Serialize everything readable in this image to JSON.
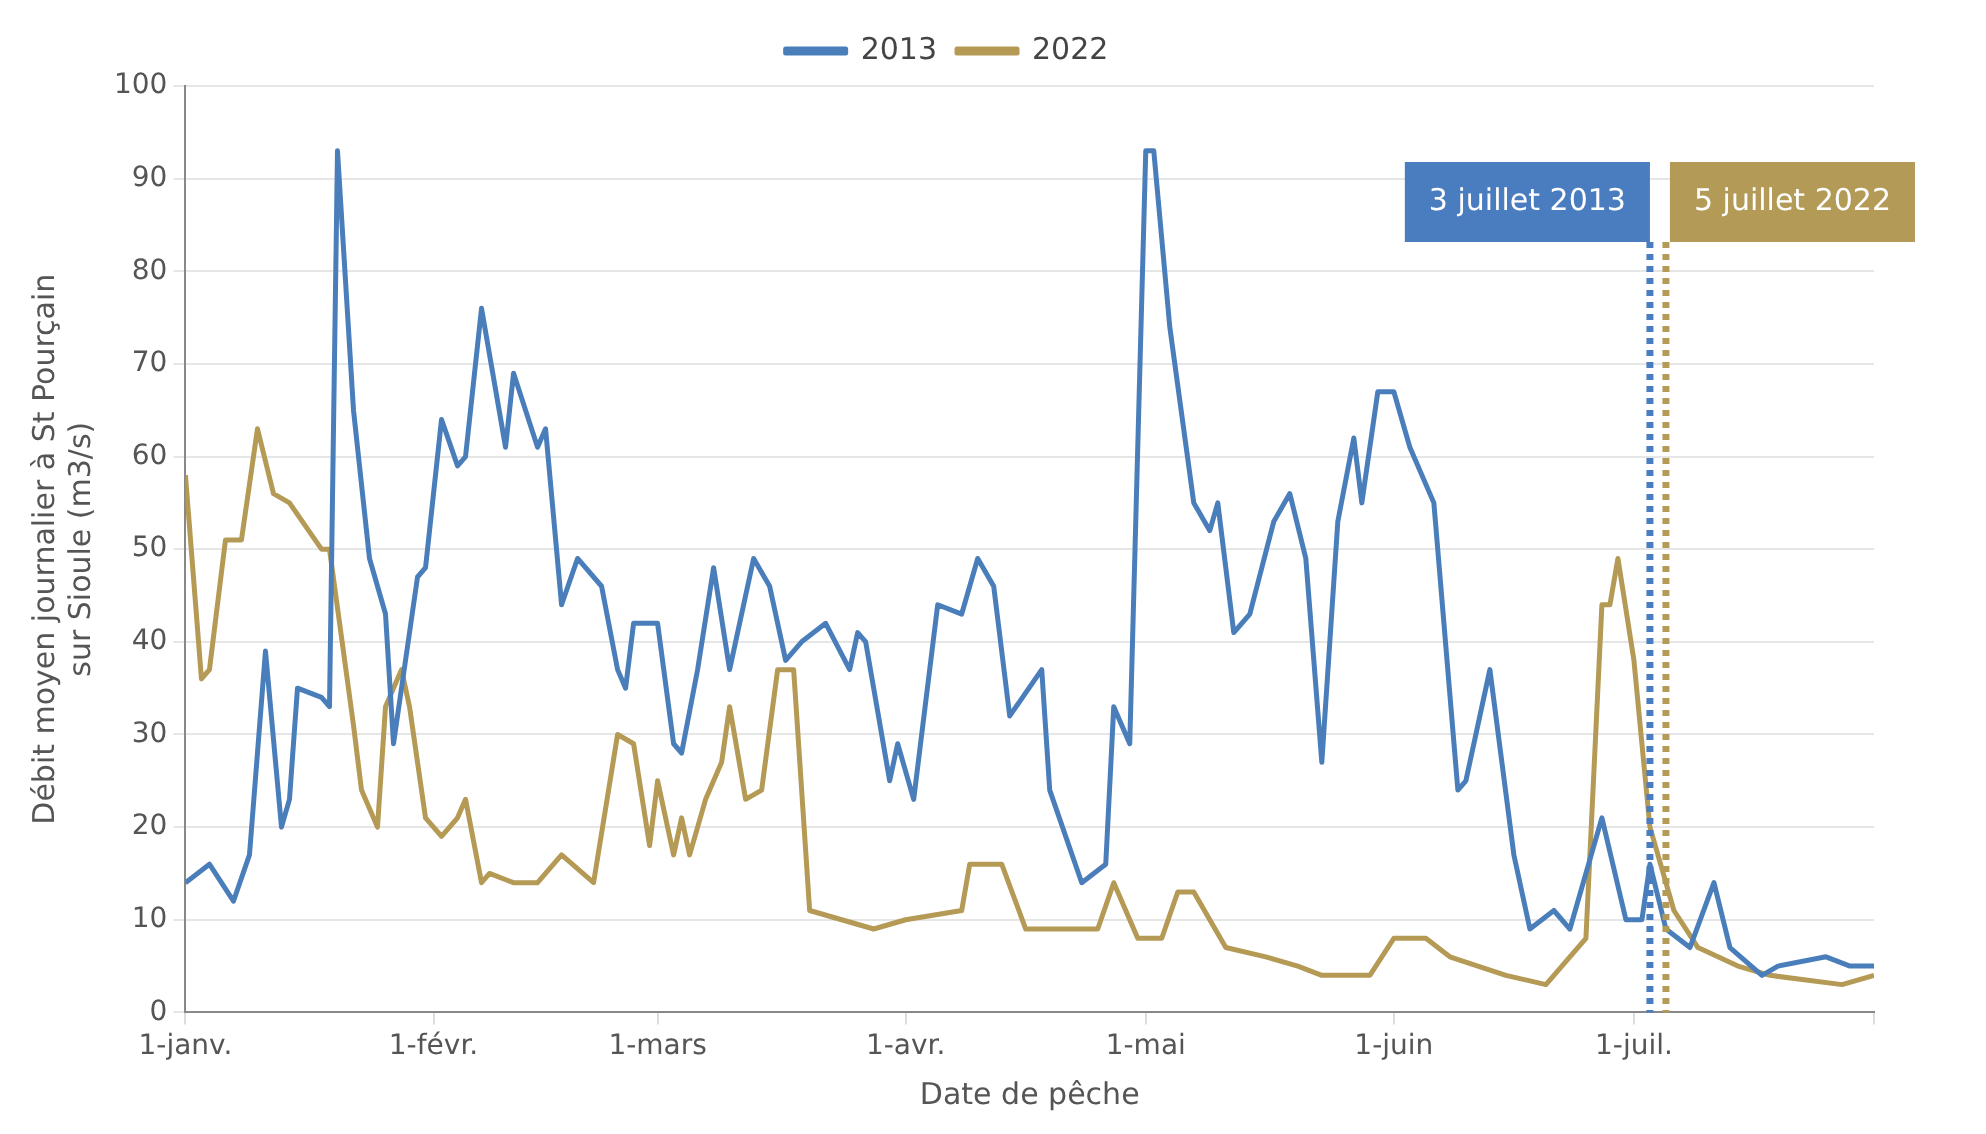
{
  "chart_data": {
    "type": "line",
    "xlabel": "Date de pêche",
    "ylabel": "Débit moyen journalier à St Pourçain sur Sioule (m3/s)",
    "xlim": [
      "--01-01",
      "--07-31"
    ],
    "xticks": [
      {
        "value": "--01-01",
        "label": "1-janv."
      },
      {
        "value": "--02-01",
        "label": "1-févr."
      },
      {
        "value": "--03-01",
        "label": "1-mars"
      },
      {
        "value": "--04-01",
        "label": "1-avr."
      },
      {
        "value": "--05-01",
        "label": "1-mai"
      },
      {
        "value": "--06-01",
        "label": "1-juin"
      },
      {
        "value": "--07-01",
        "label": "1-juil."
      },
      {
        "value": "--07-31",
        "label": null
      }
    ],
    "ylim": [
      0,
      100
    ],
    "yticks": [
      0,
      10,
      20,
      30,
      40,
      50,
      60,
      70,
      80,
      90,
      100
    ],
    "grid": "y",
    "legend": "top",
    "marker": "none",
    "line_style": "solid",
    "series": [
      {
        "name": "2013",
        "color": "#4a7ebb",
        "x": [
          "--01-01",
          "--01-04",
          "--01-07",
          "--01-09",
          "--01-11",
          "--01-13",
          "--01-14",
          "--01-15",
          "--01-18",
          "--01-19",
          "--01-20",
          "--01-22",
          "--01-24",
          "--01-26",
          "--01-27",
          "--01-30",
          "--01-31",
          "--02-02",
          "--02-04",
          "--02-05",
          "--02-07",
          "--02-10",
          "--02-11",
          "--02-14",
          "--02-15",
          "--02-17",
          "--02-19",
          "--02-22",
          "--02-24",
          "--02-25",
          "--02-26",
          "--03-01",
          "--03-03",
          "--03-04",
          "--03-06",
          "--03-08",
          "--03-10",
          "--03-11",
          "--03-13",
          "--03-15",
          "--03-17",
          "--03-19",
          "--03-22",
          "--03-25",
          "--03-26",
          "--03-27",
          "--03-30",
          "--03-31",
          "--04-02",
          "--04-05",
          "--04-08",
          "--04-10",
          "--04-12",
          "--04-14",
          "--04-18",
          "--04-19",
          "--04-23",
          "--04-26",
          "--04-27",
          "--04-29",
          "--05-01",
          "--05-02",
          "--05-04",
          "--05-07",
          "--05-09",
          "--05-10",
          "--05-12",
          "--05-14",
          "--05-17",
          "--05-19",
          "--05-21",
          "--05-23",
          "--05-25",
          "--05-27",
          "--05-28",
          "--05-30",
          "--06-01",
          "--06-03",
          "--06-06",
          "--06-09",
          "--06-10",
          "--06-13",
          "--06-16",
          "--06-18",
          "--06-21",
          "--06-23",
          "--06-27",
          "--06-30",
          "--07-02",
          "--07-03",
          "--07-05",
          "--07-08",
          "--07-11",
          "--07-13",
          "--07-17",
          "--07-19",
          "--07-25",
          "--07-28",
          "--07-31"
        ],
        "values": [
          14,
          16,
          12,
          17,
          39,
          20,
          23,
          35,
          34,
          33,
          93,
          65,
          49,
          43,
          29,
          47,
          48,
          64,
          59,
          60,
          76,
          61,
          69,
          61,
          63,
          44,
          49,
          46,
          37,
          35,
          42,
          42,
          29,
          28,
          37,
          48,
          37,
          41,
          49,
          46,
          38,
          40,
          42,
          37,
          41,
          40,
          25,
          29,
          23,
          44,
          43,
          49,
          46,
          32,
          37,
          24,
          14,
          16,
          33,
          29,
          93,
          93,
          74,
          55,
          52,
          55,
          41,
          43,
          53,
          56,
          49,
          27,
          53,
          62,
          55,
          67,
          67,
          61,
          55,
          24,
          25,
          37,
          17,
          9,
          11,
          9,
          21,
          10,
          10,
          16,
          9,
          7,
          14,
          7,
          4,
          5,
          6,
          5,
          5
        ]
      },
      {
        "name": "2022",
        "color": "#b49a55",
        "x": [
          "--01-01",
          "--01-03",
          "--01-04",
          "--01-06",
          "--01-08",
          "--01-10",
          "--01-12",
          "--01-14",
          "--01-18",
          "--01-19",
          "--01-22",
          "--01-23",
          "--01-25",
          "--01-26",
          "--01-28",
          "--01-29",
          "--01-31",
          "--02-02",
          "--02-04",
          "--02-05",
          "--02-07",
          "--02-08",
          "--02-11",
          "--02-14",
          "--02-17",
          "--02-21",
          "--02-24",
          "--02-26",
          "--02-28",
          "--03-01",
          "--03-03",
          "--03-04",
          "--03-05",
          "--03-07",
          "--03-09",
          "--03-10",
          "--03-12",
          "--03-14",
          "--03-16",
          "--03-18",
          "--03-20",
          "--03-28",
          "--04-01",
          "--04-08",
          "--04-09",
          "--04-13",
          "--04-16",
          "--04-25",
          "--04-27",
          "--04-30",
          "--05-03",
          "--05-05",
          "--05-07",
          "--05-11",
          "--05-16",
          "--05-20",
          "--05-23",
          "--05-29",
          "--06-01",
          "--06-05",
          "--06-08",
          "--06-15",
          "--06-20",
          "--06-22",
          "--06-25",
          "--06-27",
          "--06-28",
          "--06-29",
          "--07-01",
          "--07-03",
          "--07-06",
          "--07-09",
          "--07-14",
          "--07-18",
          "--07-27",
          "--07-31"
        ],
        "values": [
          58,
          36,
          37,
          51,
          51,
          63,
          56,
          55,
          50,
          50,
          31,
          24,
          20,
          33,
          37,
          33,
          21,
          19,
          21,
          23,
          14,
          15,
          14,
          14,
          17,
          14,
          30,
          29,
          18,
          25,
          17,
          21,
          17,
          23,
          27,
          33,
          23,
          24,
          37,
          37,
          11,
          9,
          10,
          11,
          16,
          16,
          9,
          9,
          14,
          8,
          8,
          13,
          13,
          7,
          6,
          5,
          4,
          4,
          8,
          8,
          6,
          4,
          3,
          5,
          8,
          44,
          44,
          49,
          38,
          20,
          11,
          7,
          5,
          4,
          3,
          4
        ]
      }
    ],
    "ref_lines": [
      {
        "axis": "x",
        "value": "--07-03",
        "label": "3 juillet 2013",
        "color": "#4a7cc0",
        "line_style": "dotted"
      },
      {
        "axis": "x",
        "value": "--07-05",
        "label": "5 juillet 2022",
        "color": "#b39b57",
        "line_style": "dotted"
      }
    ]
  }
}
